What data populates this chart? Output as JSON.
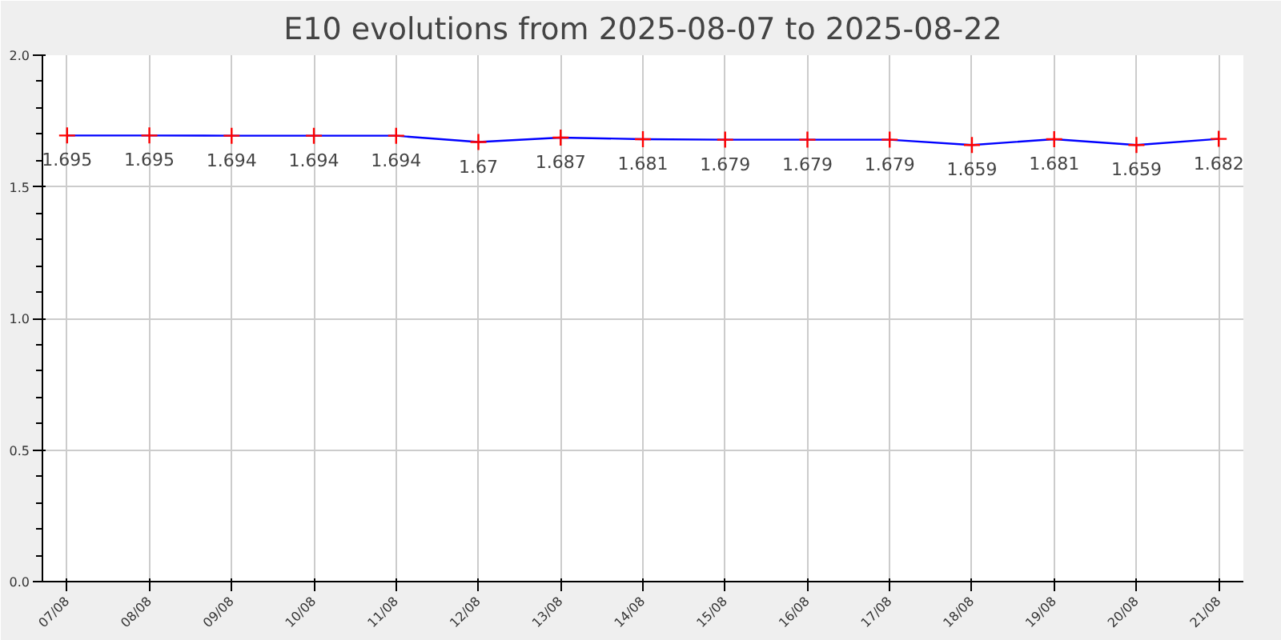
{
  "chart_data": {
    "type": "line",
    "title": "E10 evolutions from 2025-08-07 to 2025-08-22",
    "categories": [
      "07/08",
      "08/08",
      "09/08",
      "10/08",
      "11/08",
      "12/08",
      "13/08",
      "14/08",
      "15/08",
      "16/08",
      "17/08",
      "18/08",
      "19/08",
      "20/08",
      "21/08"
    ],
    "series": [
      {
        "color": "#0000ff",
        "values": [
          1.695,
          1.695,
          1.694,
          1.694,
          1.694,
          1.67,
          1.687,
          1.681,
          1.679,
          1.679,
          1.679,
          1.659,
          1.681,
          1.659,
          1.682
        ]
      }
    ],
    "ylim": [
      0,
      2
    ],
    "yticks": [
      {
        "value": 0,
        "label": "0.0"
      },
      {
        "value": 0.5,
        "label": "0.5"
      },
      {
        "value": 1,
        "label": "1.0"
      },
      {
        "value": 1.5,
        "label": "1.5"
      },
      {
        "value": 2,
        "label": "2.0"
      }
    ],
    "grid": true,
    "marker": "cross",
    "data_labels": true,
    "line_style": "solid"
  }
}
